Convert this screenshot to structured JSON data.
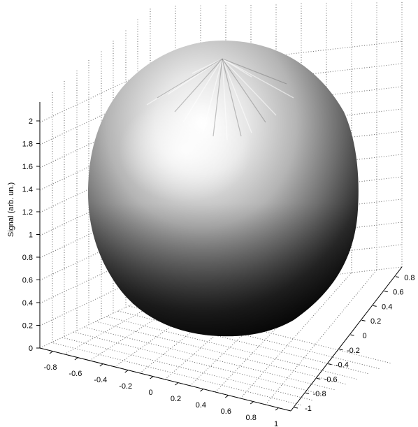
{
  "chart_data": {
    "type": "surface3d",
    "title": "",
    "xlabel": "",
    "ylabel": "",
    "zlabel": "Signal (arb. un.)",
    "colormap": "gray",
    "shape": "sphere",
    "x_ticks": [
      "-0.8",
      "-0.6",
      "-0.4",
      "-0.2",
      "0",
      "0.2",
      "0.4",
      "0.6",
      "0.8",
      "1"
    ],
    "y_ticks": [
      "-1",
      "-0.8",
      "-0.6",
      "-0.4",
      "-0.2",
      "0",
      "0.2",
      "0.4",
      "0.6",
      "0.8"
    ],
    "z_ticks": [
      "0",
      "0.2",
      "0.4",
      "0.6",
      "0.8",
      "1",
      "1.2",
      "1.4",
      "1.6",
      "1.8",
      "2"
    ],
    "xlim": [
      -1,
      1
    ],
    "ylim": [
      -1,
      1
    ],
    "zlim": [
      0,
      2.2
    ],
    "grid": true
  }
}
